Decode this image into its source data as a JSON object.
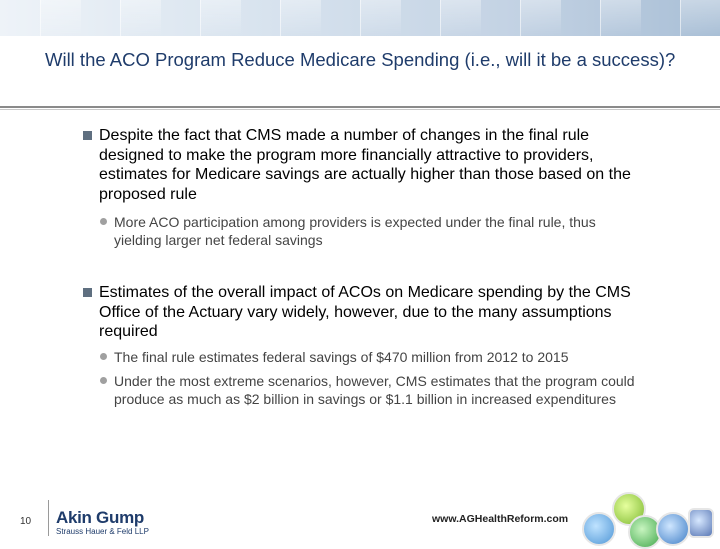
{
  "slide": {
    "title": "Will the ACO Program Reduce Medicare Spending (i.e., will it be a success)?",
    "bullets": [
      {
        "text": "Despite the fact that CMS made a number of changes in the final rule designed to make the program more financially attractive to providers, estimates for Medicare savings are actually higher than those based on the proposed rule",
        "sub": [
          "More ACO participation among providers is expected under the final rule, thus yielding larger net federal savings"
        ]
      },
      {
        "text": "Estimates of the overall impact of ACOs on Medicare spending by the CMS Office of the Actuary vary widely, however, due to the many assumptions required",
        "sub": [
          "The final rule estimates federal savings of $470 million from 2012 to 2015",
          "Under the most extreme scenarios, however, CMS estimates that the program could produce as much as $2 billion in savings or $1.1 billion in increased expenditures"
        ]
      }
    ]
  },
  "footer": {
    "page_number": "10",
    "logo_main": "Akin Gump",
    "logo_sub": "Strauss Hauer & Feld LLP",
    "website": "www.AGHealthReform.com"
  },
  "colors": {
    "title": "#1f3c6b",
    "bullet_square": "#5f6f80",
    "sub_dot": "#a0a0a0"
  }
}
